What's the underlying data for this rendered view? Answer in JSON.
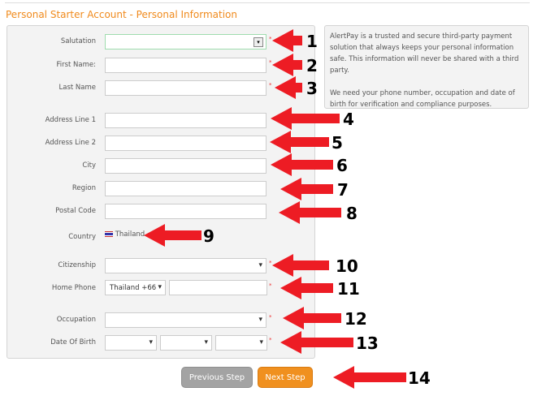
{
  "title": "Personal Starter Account - Personal Information",
  "info": {
    "p1": "AlertPay is a trusted and secure third-party payment solution that always keeps your personal information safe. This information will never be shared with a third party.",
    "p2": "We need your phone number, occupation and date of birth for verification and compliance purposes."
  },
  "fields": {
    "salutation": "Salutation",
    "first_name": "First Name:",
    "last_name": "Last Name",
    "address1": "Address Line 1",
    "address2": "Address Line 2",
    "city": "City",
    "region": "Region",
    "postal": "Postal Code",
    "country": "Country",
    "citizenship": "Citizenship",
    "home_phone": "Home Phone",
    "occupation": "Occupation",
    "dob": "Date Of Birth"
  },
  "country_value": "Thailand",
  "phone_country": "Thailand +66",
  "required_mark": "*",
  "buttons": {
    "previous": "Previous Step",
    "next": "Next Step"
  },
  "annotations": [
    "1",
    "2",
    "3",
    "4",
    "5",
    "6",
    "7",
    "8",
    "9",
    "10",
    "11",
    "12",
    "13",
    "14"
  ],
  "colors": {
    "accent": "#f08a1c",
    "arrow": "#ed1c24"
  }
}
